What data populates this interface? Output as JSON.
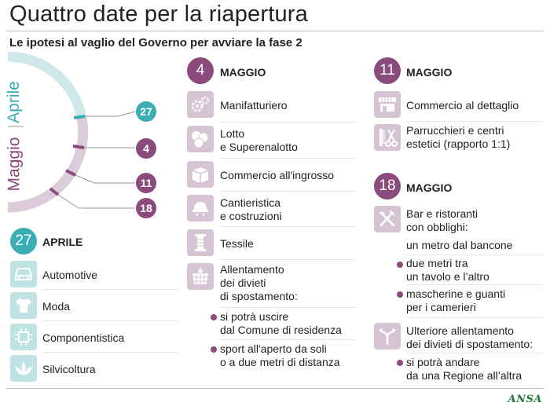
{
  "header": {
    "title": "Quattro date per la riapertura",
    "subtitle": "Le ipotesi al vaglio del Governo per avviare la fase 2"
  },
  "timeline": {
    "label_april": "Aprile",
    "label_may": "Maggio",
    "markers": [
      "27",
      "4",
      "11",
      "18"
    ]
  },
  "april": {
    "day": "27",
    "month": "APRILE",
    "items": [
      {
        "label": "Automotive",
        "icon": "car-icon"
      },
      {
        "label": "Moda",
        "icon": "tshirt-icon"
      },
      {
        "label": "Componentistica",
        "icon": "chip-icon"
      },
      {
        "label": "Silvicoltura",
        "icon": "leaf-icon"
      }
    ]
  },
  "may4": {
    "day": "4",
    "month": "MAGGIO",
    "items": [
      {
        "lines": [
          "Manifatturiero"
        ],
        "icon": "gears-icon"
      },
      {
        "lines": [
          "Lotto",
          "e Superenalotto"
        ],
        "icon": "lotto-balls-icon"
      },
      {
        "lines": [
          "Commercio all'ingrosso"
        ],
        "icon": "crate-icon"
      },
      {
        "lines": [
          "Cantieristica",
          "e costruzioni"
        ],
        "icon": "helmet-icon"
      },
      {
        "lines": [
          "Tessile"
        ],
        "icon": "thread-icon"
      },
      {
        "lines": [
          "Allentamento",
          "dei divieti",
          "di spostamento:"
        ],
        "icon": "map-grid-icon"
      }
    ],
    "bullets": [
      {
        "lines": [
          "si potrà uscire",
          "dal Comune di residenza"
        ]
      },
      {
        "lines": [
          "sport all'aperto da soli",
          "o a due metri di distanza"
        ]
      }
    ]
  },
  "may11": {
    "day": "11",
    "month": "MAGGIO",
    "items": [
      {
        "lines": [
          "Commercio al dettaglio"
        ],
        "icon": "shop-icon"
      },
      {
        "lines": [
          "Parrucchieri e centri",
          "estetici (rapporto 1:1)"
        ],
        "icon": "scissors-comb-icon"
      }
    ]
  },
  "may18": {
    "day": "18",
    "month": "MAGGIO",
    "items": [
      {
        "lines": [
          "Bar e ristoranti",
          "con obblighi:"
        ],
        "icon": "cutlery-icon"
      },
      {
        "lines": [
          "Ulteriore allentamento",
          "dei divieti di spostamento:"
        ],
        "icon": "split-arrows-icon"
      }
    ],
    "restaurant_first": "un metro dal bancone",
    "restaurant_bullets": [
      {
        "lines": [
          "due metri tra",
          "un tavolo e l’altro"
        ]
      },
      {
        "lines": [
          "mascherine e guanti",
          "per i camerieri"
        ]
      }
    ],
    "move_bullets": [
      {
        "lines": [
          "si potrà andare",
          "da una Regione all’altra"
        ]
      }
    ]
  },
  "footer": {
    "brand": "ANSA"
  },
  "colors": {
    "purple": "#8b4a7c",
    "teal": "#3aaeb4",
    "light_purple": "#d6c3d3",
    "light_teal": "#bfe3e4"
  }
}
